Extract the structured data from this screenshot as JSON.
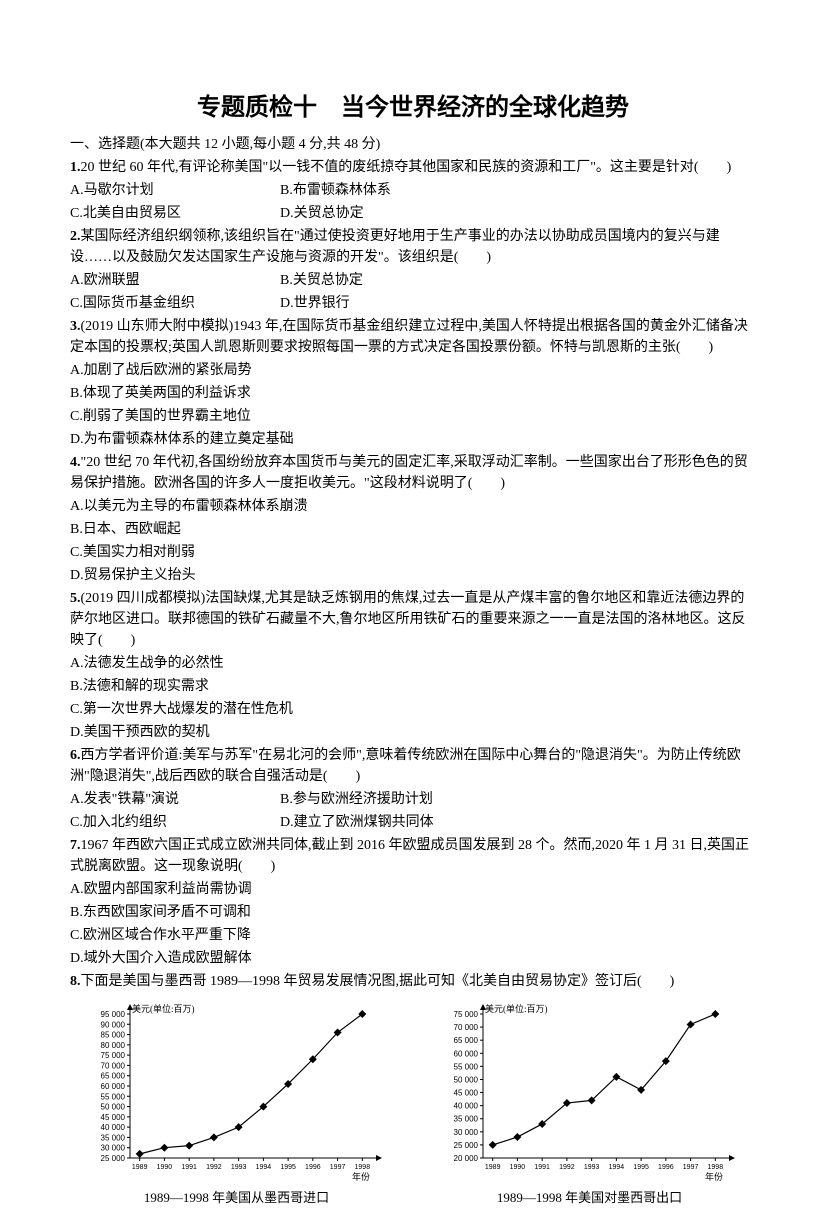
{
  "title": "专题质检十　当今世界经济的全球化趋势",
  "section_header": "一、选择题(本大题共 12 小题,每小题 4 分,共 48 分)",
  "questions": [
    {
      "num": "1.",
      "text": "20 世纪 60 年代,有评论称美国\"以一钱不值的废纸掠夺其他国家和民族的资源和工厂\"。这主要是针对(　　)",
      "option_lines": [
        [
          "A.马歇尔计划",
          "B.布雷顿森林体系"
        ],
        [
          "C.北美自由贸易区",
          "D.关贸总协定"
        ]
      ]
    },
    {
      "num": "2.",
      "text": "某国际经济组织纲领称,该组织旨在\"通过使投资更好地用于生产事业的办法以协助成员国境内的复兴与建设……以及鼓励欠发达国家生产设施与资源的开发\"。该组织是(　　)",
      "option_lines": [
        [
          "A.欧洲联盟",
          "B.关贸总协定"
        ],
        [
          "C.国际货币基金组织",
          "D.世界银行"
        ]
      ]
    },
    {
      "num": "3.",
      "text": "(2019 山东师大附中模拟)1943 年,在国际货币基金组织建立过程中,美国人怀特提出根据各国的黄金外汇储备决定本国的投票权;英国人凯恩斯则要求按照每国一票的方式决定各国投票份额。怀特与凯恩斯的主张(　　)",
      "option_lines": [
        [
          "A.加剧了战后欧洲的紧张局势"
        ],
        [
          "B.体现了英美两国的利益诉求"
        ],
        [
          "C.削弱了美国的世界霸主地位"
        ],
        [
          "D.为布雷顿森林体系的建立奠定基础"
        ]
      ]
    },
    {
      "num": "4.",
      "text": "\"20 世纪 70 年代初,各国纷纷放弃本国货币与美元的固定汇率,采取浮动汇率制。一些国家出台了形形色色的贸易保护措施。欧洲各国的许多人一度拒收美元。\"这段材料说明了(　　)",
      "option_lines": [
        [
          "A.以美元为主导的布雷顿森林体系崩溃"
        ],
        [
          "B.日本、西欧崛起"
        ],
        [
          "C.美国实力相对削弱"
        ],
        [
          "D.贸易保护主义抬头"
        ]
      ]
    },
    {
      "num": "5.",
      "text": "(2019 四川成都模拟)法国缺煤,尤其是缺乏炼钢用的焦煤,过去一直是从产煤丰富的鲁尔地区和靠近法德边界的萨尔地区进口。联邦德国的铁矿石藏量不大,鲁尔地区所用铁矿石的重要来源之一一直是法国的洛林地区。这反映了(　　)",
      "option_lines": [
        [
          "A.法德发生战争的必然性"
        ],
        [
          "B.法德和解的现实需求"
        ],
        [
          "C.第一次世界大战爆发的潜在性危机"
        ],
        [
          "D.美国干预西欧的契机"
        ]
      ]
    },
    {
      "num": "6.",
      "text": "西方学者评价道:美军与苏军\"在易北河的会师\",意味着传统欧洲在国际中心舞台的\"隐退消失\"。为防止传统欧洲\"隐退消失\",战后西欧的联合自强活动是(　　)",
      "option_lines": [
        [
          "A.发表\"铁幕\"演说",
          "B.参与欧洲经济援助计划"
        ],
        [
          "C.加入北约组织",
          "D.建立了欧洲煤钢共同体"
        ]
      ]
    },
    {
      "num": "7.",
      "text": "1967 年西欧六国正式成立欧洲共同体,截止到 2016 年欧盟成员国发展到 28 个。然而,2020 年 1 月 31 日,英国正式脱离欧盟。这一现象说明(　　)",
      "option_lines": [
        [
          "A.欧盟内部国家利益尚需协调"
        ],
        [
          "B.东西欧国家间矛盾不可调和"
        ],
        [
          "C.欧洲区域合作水平严重下降"
        ],
        [
          "D.域外大国介入造成欧盟解体"
        ]
      ]
    },
    {
      "num": "8.",
      "text": "下面是美国与墨西哥 1989—1998 年贸易发展情况图,据此可知《北美自由贸易协定》签订后(　　)"
    }
  ],
  "chart_left": {
    "type": "line",
    "caption": "1989—1998 年美国从墨西哥进口",
    "y_unit_label": "美元(单位:百万)",
    "x_label": "年份",
    "x_ticks": [
      "1989",
      "1990",
      "1991",
      "1992",
      "1993",
      "1994",
      "1995",
      "1996",
      "1997",
      "1998"
    ],
    "y_min": 25000,
    "y_max": 95000,
    "y_step": 5000,
    "values": [
      27000,
      30000,
      31000,
      35000,
      40000,
      50000,
      61000,
      73000,
      86000,
      95000
    ],
    "line_color": "#000000",
    "marker": "diamond",
    "marker_size": 4,
    "background_color": "#ffffff",
    "axis_color": "#000000",
    "font_size": 8
  },
  "chart_right": {
    "type": "line",
    "caption": "1989—1998 年美国对墨西哥出口",
    "y_unit_label": "美元(单位:百万)",
    "x_label": "年份",
    "x_ticks": [
      "1989",
      "1990",
      "1991",
      "1992",
      "1993",
      "1994",
      "1995",
      "1996",
      "1997",
      "1998"
    ],
    "y_min": 20000,
    "y_max": 75000,
    "y_step": 5000,
    "values": [
      25000,
      28000,
      33000,
      41000,
      42000,
      51000,
      46000,
      57000,
      71000,
      75000
    ],
    "line_color": "#000000",
    "marker": "diamond",
    "marker_size": 4,
    "background_color": "#ffffff",
    "axis_color": "#000000",
    "font_size": 8
  }
}
